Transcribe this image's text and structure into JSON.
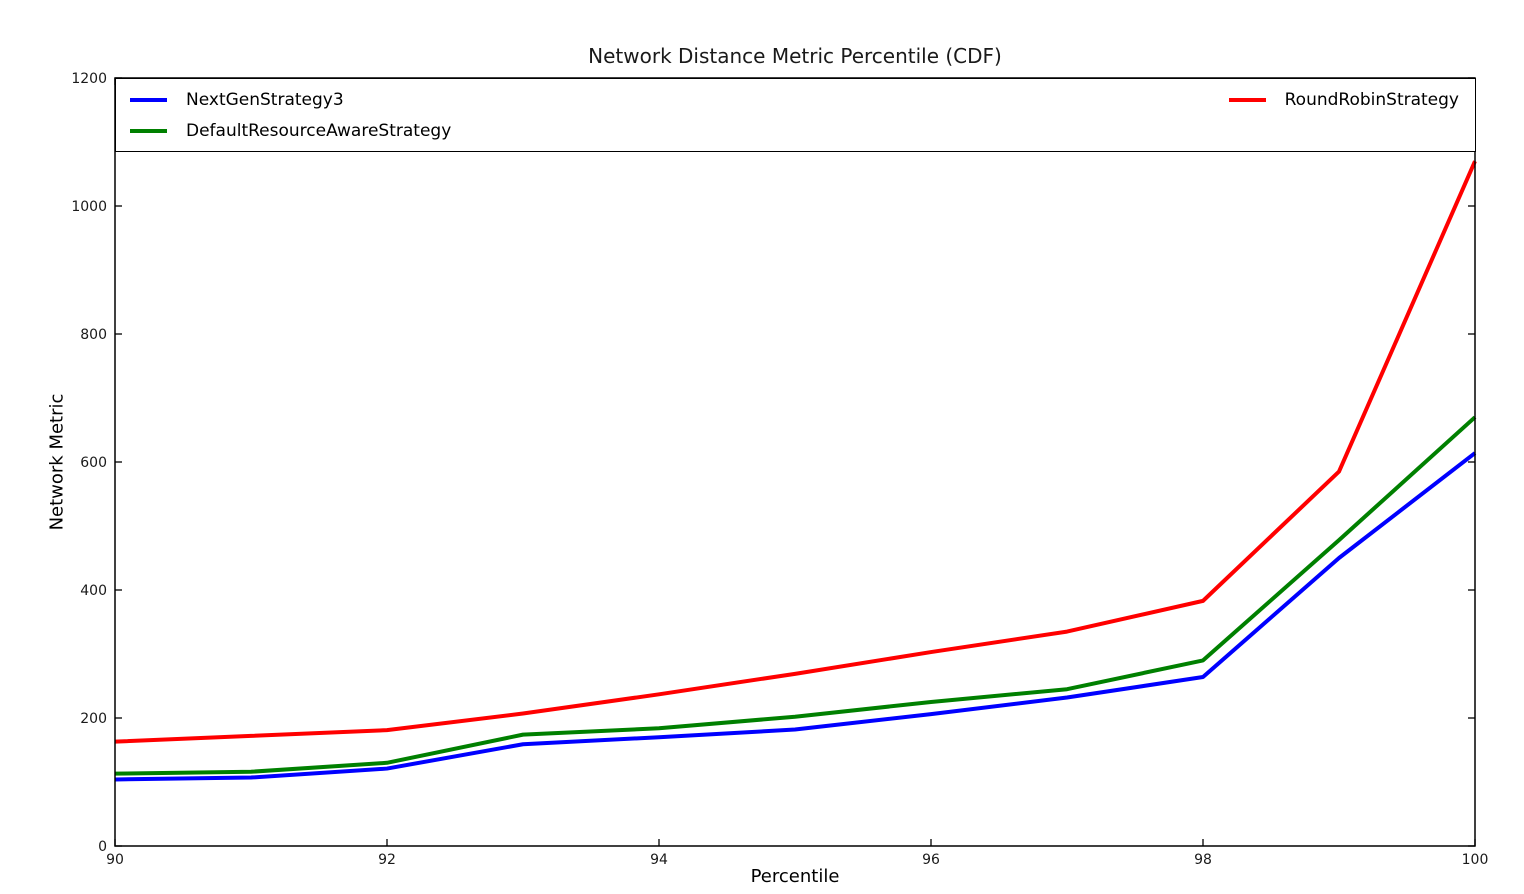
{
  "figure": {
    "title": "Network Distance Metric Percentile (CDF)",
    "xlabel": "Percentile",
    "ylabel": "Network Metric"
  },
  "chart_data": {
    "type": "line",
    "title": "Network Distance Metric Percentile (CDF)",
    "xlabel": "Percentile",
    "ylabel": "Network Metric",
    "xlim": [
      90,
      100
    ],
    "ylim": [
      0,
      1200
    ],
    "xticks": [
      90,
      92,
      94,
      96,
      98,
      100
    ],
    "yticks": [
      0,
      200,
      400,
      600,
      800,
      1000,
      1200
    ],
    "grid": false,
    "legend_position": "top inside, full plot width, two columns",
    "axis_color": "#000000",
    "x": [
      90,
      91,
      92,
      93,
      94,
      95,
      96,
      97,
      98,
      99,
      100
    ],
    "series": [
      {
        "name": "NextGenStrategy3",
        "color": "#0000ff",
        "legend_column": 0,
        "values": [
          104,
          107,
          121,
          159,
          170,
          182,
          206,
          232,
          264,
          450,
          614
        ]
      },
      {
        "name": "DefaultResourceAwareStrategy",
        "color": "#008000",
        "legend_column": 0,
        "values": [
          113,
          116,
          130,
          174,
          184,
          202,
          225,
          245,
          290,
          478,
          670
        ]
      },
      {
        "name": "RoundRobinStrategy",
        "color": "#ff0000",
        "legend_column": 1,
        "values": [
          163,
          172,
          181,
          207,
          237,
          269,
          303,
          335,
          383,
          585,
          1070
        ]
      }
    ]
  }
}
